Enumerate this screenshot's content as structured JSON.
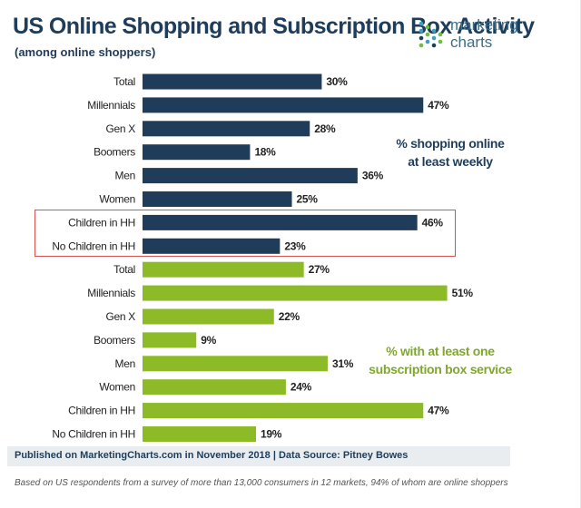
{
  "header": {
    "title": "US Online Shopping and Subscription Box Activity",
    "subtitle": "(among online shoppers)"
  },
  "logo": {
    "line1": "marketing",
    "line2": "charts",
    "colors": [
      "#3aa0c8",
      "#6fbf3f",
      "#1f3d5a"
    ]
  },
  "colors": {
    "series_weekly": "#1f3d5a",
    "series_subscription": "#8dbb28",
    "highlight_border": "#d9534f"
  },
  "chart_data": {
    "type": "bar",
    "orientation": "horizontal",
    "title": "US Online Shopping and Subscription Box Activity",
    "subtitle": "(among online shoppers)",
    "xlim": [
      0,
      60
    ],
    "grid": false,
    "series": [
      {
        "name": "% shopping online at least weekly",
        "name_line1": "% shopping online",
        "name_line2": "at least weekly",
        "color": "#1f3d5a",
        "categories": [
          "Total",
          "Millennials",
          "Gen X",
          "Boomers",
          "Men",
          "Women",
          "Children in HH",
          "No Children in HH"
        ],
        "values": [
          30,
          47,
          28,
          18,
          36,
          25,
          46,
          23
        ],
        "labels": [
          "30%",
          "47%",
          "28%",
          "18%",
          "36%",
          "25%",
          "46%",
          "23%"
        ]
      },
      {
        "name": "% with at least one subscription box service",
        "name_line1": "% with at least one",
        "name_line2": "subscription box service",
        "color": "#8dbb28",
        "categories": [
          "Total",
          "Millennials",
          "Gen X",
          "Boomers",
          "Men",
          "Women",
          "Children in HH",
          "No Children in HH"
        ],
        "values": [
          27,
          51,
          22,
          9,
          31,
          24,
          47,
          19
        ],
        "labels": [
          "27%",
          "51%",
          "22%",
          "9%",
          "31%",
          "24%",
          "47%",
          "19%"
        ]
      }
    ],
    "highlighted_categories": [
      "Children in HH",
      "No Children in HH"
    ]
  },
  "footer": {
    "source": "Published on MarketingCharts.com in November 2018 | Data Source: Pitney Bowes",
    "note": "Based on US respondents from a survey of more than 13,000 consumers in 12 markets, 94% of whom are online shoppers"
  }
}
